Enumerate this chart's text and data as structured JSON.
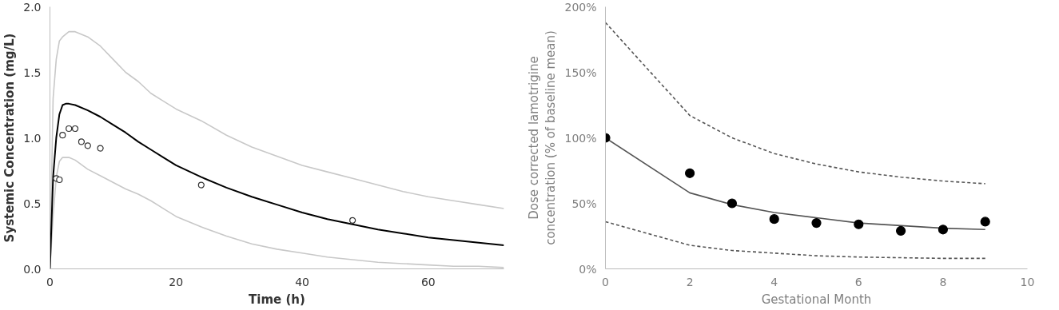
{
  "chart_data": [
    {
      "type": "line",
      "xlabel": "Time (h)",
      "ylabel": "Systemic Concentration (mg/L)",
      "xlim": [
        0,
        72
      ],
      "ylim": [
        0,
        2
      ],
      "xticks": [
        0,
        20,
        40,
        60
      ],
      "yticks": [
        {
          "value": 0,
          "label": "0.0"
        },
        {
          "value": 0.5,
          "label": "0.5"
        },
        {
          "value": 1,
          "label": "1.0"
        },
        {
          "value": 1.5,
          "label": "1.5"
        },
        {
          "value": 2,
          "label": "2.0"
        }
      ],
      "grid": false,
      "series": [
        {
          "color": "#c8c8c8",
          "line_style": "solid",
          "x": [
            0,
            0.5,
            1,
            1.5,
            2,
            3,
            4,
            6,
            8,
            10,
            12,
            14,
            16,
            18,
            20,
            24,
            28,
            32,
            36,
            40,
            44,
            48,
            52,
            56,
            60,
            64,
            68,
            72
          ],
          "values": [
            0,
            1.3,
            1.6,
            1.74,
            1.77,
            1.81,
            1.81,
            1.77,
            1.7,
            1.6,
            1.5,
            1.43,
            1.34,
            1.28,
            1.22,
            1.13,
            1.02,
            0.93,
            0.86,
            0.79,
            0.74,
            0.69,
            0.64,
            0.59,
            0.55,
            0.52,
            0.49,
            0.46
          ]
        },
        {
          "color": "#c8c8c8",
          "line_style": "solid",
          "x": [
            0,
            0.5,
            1,
            1.5,
            2,
            3,
            4,
            6,
            8,
            10,
            12,
            14,
            16,
            18,
            20,
            24,
            28,
            32,
            36,
            40,
            44,
            48,
            52,
            56,
            60,
            64,
            68,
            72
          ],
          "values": [
            0,
            0.4,
            0.7,
            0.82,
            0.85,
            0.85,
            0.83,
            0.76,
            0.71,
            0.66,
            0.61,
            0.57,
            0.52,
            0.46,
            0.4,
            0.32,
            0.25,
            0.19,
            0.15,
            0.12,
            0.09,
            0.07,
            0.05,
            0.04,
            0.03,
            0.02,
            0.02,
            0.01
          ]
        },
        {
          "color": "#000000",
          "line_style": "solid",
          "x": [
            0,
            0.5,
            1,
            1.5,
            2,
            2.5,
            3,
            4,
            6,
            8,
            10,
            12,
            14,
            16,
            18,
            20,
            24,
            28,
            32,
            36,
            40,
            44,
            48,
            52,
            56,
            60,
            64,
            68,
            72
          ],
          "values": [
            0,
            0.7,
            1.0,
            1.18,
            1.25,
            1.26,
            1.26,
            1.25,
            1.21,
            1.16,
            1.1,
            1.04,
            0.97,
            0.91,
            0.85,
            0.79,
            0.7,
            0.62,
            0.55,
            0.49,
            0.43,
            0.38,
            0.34,
            0.3,
            0.27,
            0.24,
            0.22,
            0.2,
            0.18
          ]
        },
        {
          "type": "scatter",
          "marker": "circle",
          "color": "#333333",
          "x": [
            1,
            1.5,
            2,
            3,
            4,
            5,
            6,
            8,
            24,
            48
          ],
          "values": [
            0.69,
            0.68,
            1.02,
            1.07,
            1.07,
            0.97,
            0.94,
            0.92,
            0.64,
            0.37
          ]
        }
      ]
    },
    {
      "type": "line",
      "xlabel": "Gestational Month",
      "ylabel": "Dose corrected lamotrigine\nconcentration (% of baseline mean)",
      "xlim": [
        0,
        10
      ],
      "ylim": [
        0,
        200
      ],
      "xticks": [
        0,
        2,
        4,
        6,
        8,
        10
      ],
      "yticks": [
        {
          "value": 0,
          "label": "0%"
        },
        {
          "value": 50,
          "label": "50%"
        },
        {
          "value": 100,
          "label": "100%"
        },
        {
          "value": 150,
          "label": "150%"
        },
        {
          "value": 200,
          "label": "200%"
        }
      ],
      "grid": false,
      "series": [
        {
          "color": "#555555",
          "line_style": "dashed",
          "x": [
            0,
            2,
            3,
            4,
            5,
            6,
            7,
            8,
            9
          ],
          "values": [
            188,
            117,
            100,
            88,
            80,
            74,
            70,
            67,
            65
          ]
        },
        {
          "color": "#555555",
          "line_style": "dashed",
          "x": [
            0,
            2,
            3,
            4,
            5,
            6,
            7,
            8,
            9
          ],
          "values": [
            36,
            18,
            14,
            12,
            10,
            9,
            8.5,
            8,
            8
          ]
        },
        {
          "color": "#555555",
          "line_style": "solid",
          "x": [
            0,
            2,
            3,
            4,
            5,
            6,
            7,
            8,
            9
          ],
          "values": [
            100,
            58,
            49,
            43,
            39,
            35,
            33,
            31,
            30
          ]
        },
        {
          "type": "scatter",
          "marker": "circle",
          "color": "#000000",
          "x": [
            0,
            2,
            3,
            4,
            5,
            6,
            7,
            8,
            9
          ],
          "values": [
            100,
            73,
            50,
            38,
            35,
            34,
            29,
            30,
            36
          ]
        }
      ]
    }
  ]
}
